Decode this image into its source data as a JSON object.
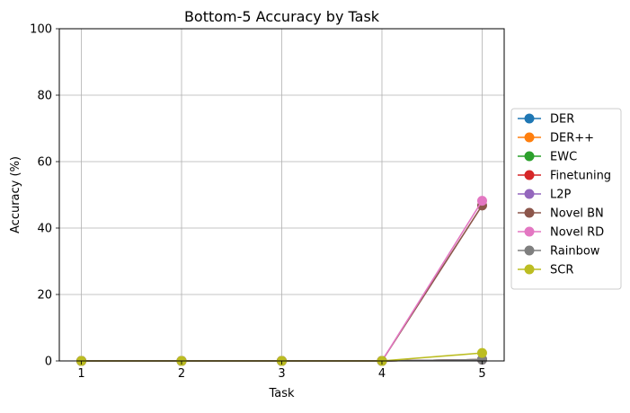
{
  "chart_data": {
    "type": "line",
    "title": "Bottom-5 Accuracy by Task",
    "xlabel": "Task",
    "ylabel": "Accuracy (%)",
    "x": [
      1,
      2,
      3,
      4,
      5
    ],
    "x_ticks": [
      "1",
      "2",
      "3",
      "4",
      "5"
    ],
    "y_ticks": [
      "0",
      "20",
      "40",
      "60",
      "80",
      "100"
    ],
    "ylim": [
      0,
      100
    ],
    "grid": true,
    "legend_position": "right",
    "series": [
      {
        "name": "DER",
        "color": "#1f77b4",
        "values": [
          0,
          0,
          0,
          0,
          0.4
        ]
      },
      {
        "name": "DER++",
        "color": "#ff7f0e",
        "values": [
          0,
          0,
          0,
          0,
          0.4
        ]
      },
      {
        "name": "EWC",
        "color": "#2ca02c",
        "values": [
          0,
          0,
          0,
          0,
          0.4
        ]
      },
      {
        "name": "Finetuning",
        "color": "#d62728",
        "values": [
          0,
          0,
          0,
          0,
          0.4
        ]
      },
      {
        "name": "L2P",
        "color": "#9467bd",
        "values": [
          0,
          0,
          0,
          0,
          0.4
        ]
      },
      {
        "name": "Novel BN",
        "color": "#8c564b",
        "values": [
          0,
          0,
          0,
          0,
          46.8
        ]
      },
      {
        "name": "Novel RD",
        "color": "#e377c2",
        "values": [
          0,
          0,
          0,
          0,
          48.2
        ]
      },
      {
        "name": "Rainbow",
        "color": "#7f7f7f",
        "values": [
          0,
          0,
          0,
          0,
          0.4
        ]
      },
      {
        "name": "SCR",
        "color": "#bcbd22",
        "values": [
          0,
          0,
          0,
          0,
          2.4
        ]
      }
    ]
  }
}
